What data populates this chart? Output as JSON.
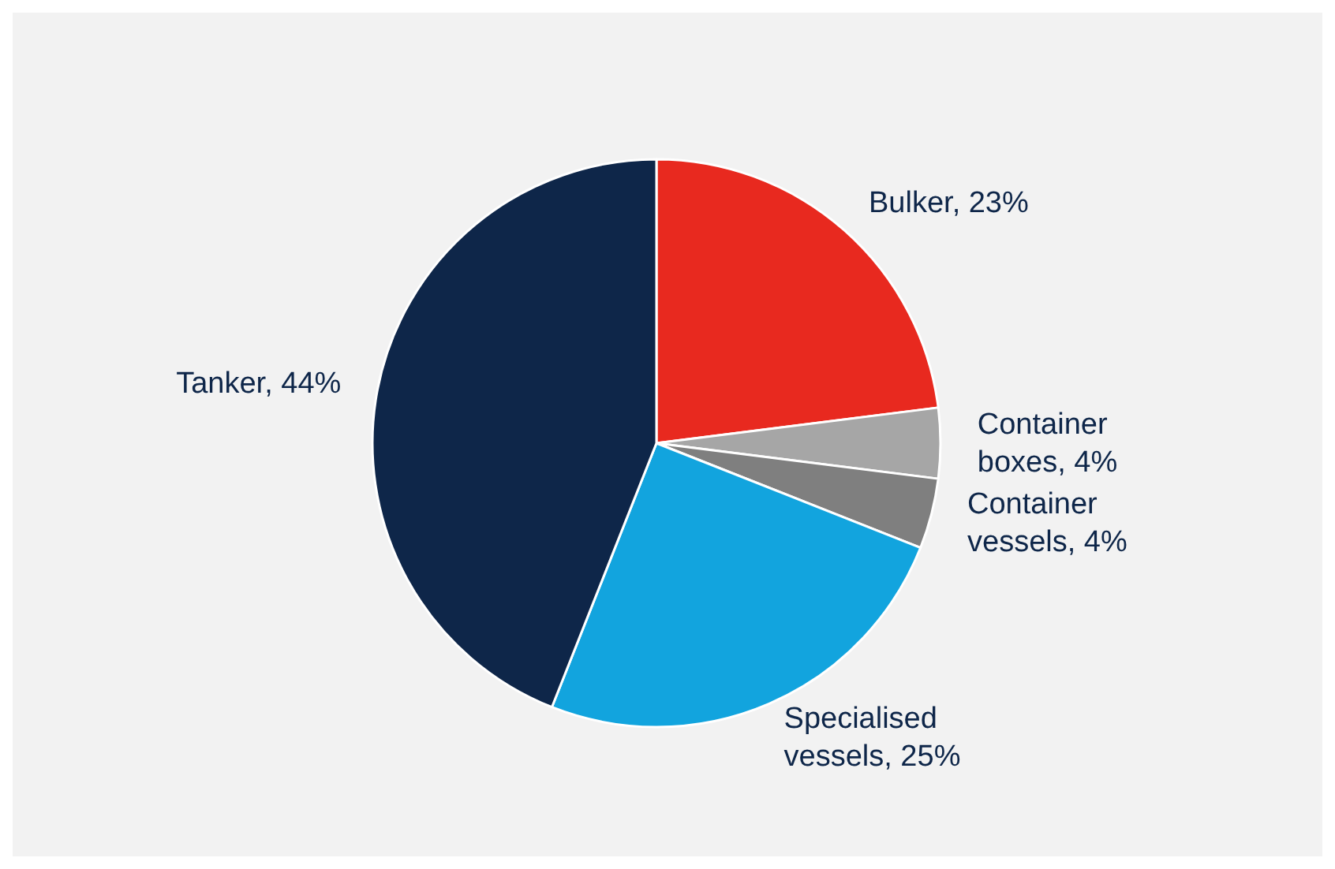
{
  "chart_data": {
    "type": "pie",
    "categories": [
      "Bulker",
      "Container boxes",
      "Container vessels",
      "Specialised vessels",
      "Tanker"
    ],
    "values": [
      23,
      4,
      4,
      25,
      44
    ],
    "value_labels": [
      ", 23%",
      ", 4%",
      ", 4%",
      ", 25%",
      ", 44%"
    ],
    "colors": [
      "#e8291f",
      "#a6a6a6",
      "#7f7f7f",
      "#12a4de",
      "#0e2649"
    ]
  }
}
